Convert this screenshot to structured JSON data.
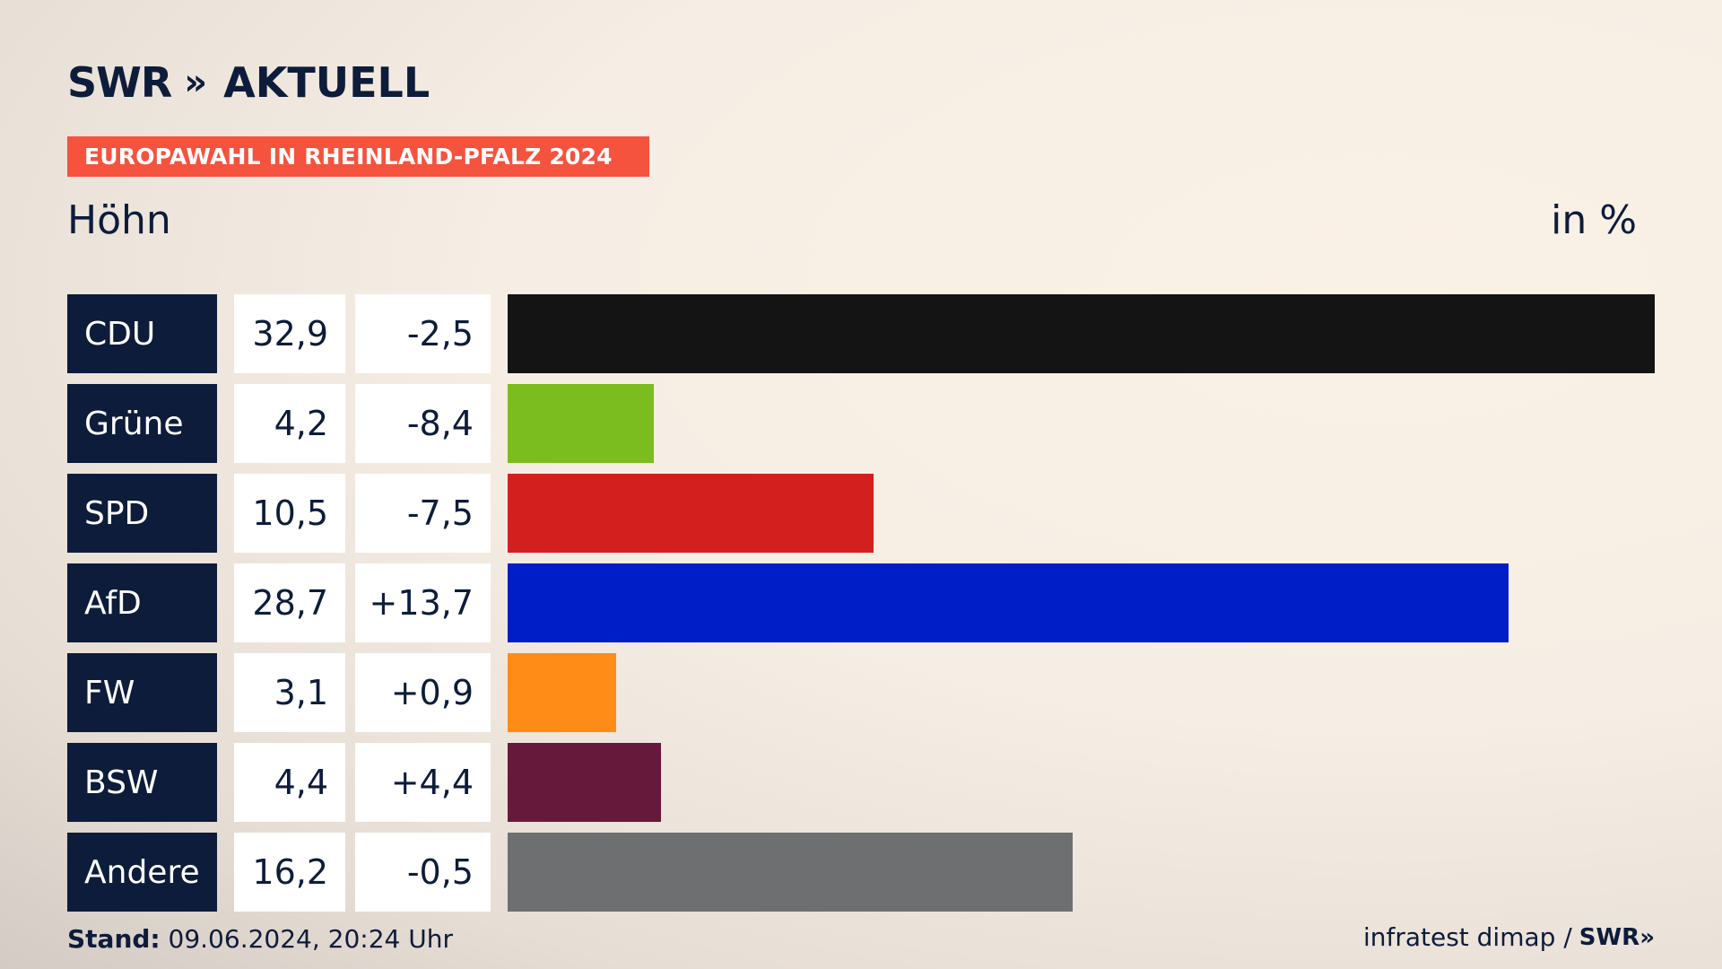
{
  "brand": {
    "logo_swr": "SWR",
    "logo_chevrons": "»",
    "logo_aktuell": "AKTUELL"
  },
  "banner": {
    "text": "EUROPAWAHL IN RHEINLAND-PFALZ 2024",
    "color": "#f5533d"
  },
  "subtitle": "Höhn",
  "unit": "in %",
  "chart_data": {
    "type": "bar",
    "orientation": "horizontal",
    "categories": [
      "CDU",
      "Grüne",
      "SPD",
      "AfD",
      "FW",
      "BSW",
      "Andere"
    ],
    "values": [
      32.9,
      4.2,
      10.5,
      28.7,
      3.1,
      4.4,
      16.2
    ],
    "value_labels": [
      "32,9",
      "4,2",
      "10,5",
      "28,7",
      "3,1",
      "4,4",
      "16,2"
    ],
    "changes": [
      -2.5,
      -8.4,
      -7.5,
      13.7,
      0.9,
      4.4,
      -0.5
    ],
    "change_labels": [
      "-2,5",
      "-8,4",
      "-7,5",
      "+13,7",
      "+0,9",
      "+4,4",
      "-0,5"
    ],
    "colors": [
      "#141414",
      "#7bbd1f",
      "#d41f1f",
      "#001ec8",
      "#ff8c16",
      "#67193c",
      "#6e6f71"
    ],
    "title": "",
    "xlabel": "",
    "ylabel": "",
    "xlim": [
      0,
      32.9
    ]
  },
  "footer": {
    "stand_label": "Stand:",
    "stand_value": "09.06.2024, 20:24 Uhr",
    "source": "infratest dimap /",
    "source_brand": "SWR»"
  }
}
